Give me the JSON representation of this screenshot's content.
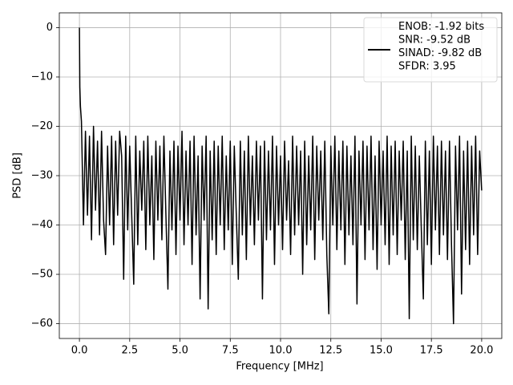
{
  "chart_data": {
    "type": "line",
    "xlabel": "Frequency [MHz]",
    "ylabel": "PSD [dB]",
    "xlim": [
      -1,
      21
    ],
    "ylim": [
      -63,
      3
    ],
    "xticks": [
      {
        "value": 0,
        "label": "0.0"
      },
      2.5,
      {
        "value": 5,
        "label": "5.0"
      },
      7.5,
      {
        "value": 10,
        "label": "10.0"
      },
      12.5,
      {
        "value": 15,
        "label": "15.0"
      },
      17.5,
      {
        "value": 20,
        "label": "20.0"
      }
    ],
    "yticks": [
      0,
      {
        "value": -10,
        "label": "−10"
      },
      {
        "value": -20,
        "label": "−20"
      },
      {
        "value": -30,
        "label": "−30"
      },
      {
        "value": -40,
        "label": "−40"
      },
      {
        "value": -50,
        "label": "−50"
      },
      {
        "value": -60,
        "label": "−60"
      }
    ],
    "grid": true,
    "legend": "upper right",
    "series": [
      {
        "name": "ENOB: -1.92 bits\nSNR: -9.52 dB\nSINAD: -9.82 dB\nSFDR: 3.95",
        "color": "#000000",
        "x": [
          0,
          0.02,
          0.05,
          0.1,
          0.2,
          0.3,
          0.4,
          0.5,
          0.6,
          0.7,
          0.8,
          0.9,
          1.0,
          1.1,
          1.2,
          1.3,
          1.4,
          1.5,
          1.6,
          1.7,
          1.8,
          1.9,
          2.0,
          2.1,
          2.2,
          2.3,
          2.4,
          2.5,
          2.6,
          2.7,
          2.8,
          2.9,
          3.0,
          3.1,
          3.2,
          3.3,
          3.4,
          3.5,
          3.6,
          3.7,
          3.8,
          3.9,
          4.0,
          4.1,
          4.2,
          4.3,
          4.4,
          4.5,
          4.6,
          4.7,
          4.8,
          4.9,
          5.0,
          5.1,
          5.2,
          5.3,
          5.4,
          5.5,
          5.6,
          5.7,
          5.8,
          5.9,
          6.0,
          6.1,
          6.2,
          6.3,
          6.4,
          6.5,
          6.6,
          6.7,
          6.8,
          6.9,
          7.0,
          7.1,
          7.2,
          7.3,
          7.4,
          7.5,
          7.6,
          7.7,
          7.8,
          7.9,
          8.0,
          8.1,
          8.2,
          8.3,
          8.4,
          8.5,
          8.6,
          8.7,
          8.8,
          8.9,
          9.0,
          9.1,
          9.2,
          9.3,
          9.4,
          9.5,
          9.6,
          9.7,
          9.8,
          9.9,
          10.0,
          10.1,
          10.2,
          10.3,
          10.4,
          10.5,
          10.6,
          10.7,
          10.8,
          10.9,
          11.0,
          11.1,
          11.2,
          11.3,
          11.4,
          11.5,
          11.6,
          11.7,
          11.8,
          11.9,
          12.0,
          12.1,
          12.2,
          12.3,
          12.4,
          12.5,
          12.6,
          12.7,
          12.8,
          12.9,
          13.0,
          13.1,
          13.2,
          13.3,
          13.4,
          13.5,
          13.6,
          13.7,
          13.8,
          13.9,
          14.0,
          14.1,
          14.2,
          14.3,
          14.4,
          14.5,
          14.6,
          14.7,
          14.8,
          14.9,
          15.0,
          15.1,
          15.2,
          15.3,
          15.4,
          15.5,
          15.6,
          15.7,
          15.8,
          15.9,
          16.0,
          16.1,
          16.2,
          16.3,
          16.4,
          16.5,
          16.6,
          16.7,
          16.8,
          16.9,
          17.0,
          17.1,
          17.2,
          17.3,
          17.4,
          17.5,
          17.6,
          17.7,
          17.8,
          17.9,
          18.0,
          18.1,
          18.2,
          18.3,
          18.4,
          18.5,
          18.6,
          18.7,
          18.8,
          18.9,
          19.0,
          19.1,
          19.2,
          19.3,
          19.4,
          19.5,
          19.6,
          19.7,
          19.8,
          19.9,
          20.0
        ],
        "values": [
          0,
          -12,
          -16,
          -19,
          -40,
          -21,
          -38,
          -22,
          -43,
          -20,
          -37,
          -23,
          -42,
          -21,
          -39,
          -46,
          -24,
          -40,
          -22,
          -44,
          -23,
          -38,
          -21,
          -26,
          -51,
          -22,
          -41,
          -24,
          -38,
          -52,
          -22,
          -44,
          -25,
          -37,
          -23,
          -45,
          -22,
          -40,
          -26,
          -47,
          -23,
          -39,
          -24,
          -43,
          -22,
          -38,
          -53,
          -25,
          -41,
          -23,
          -46,
          -24,
          -39,
          -21,
          -44,
          -25,
          -40,
          -23,
          -48,
          -22,
          -42,
          -26,
          -55,
          -24,
          -39,
          -22,
          -57,
          -25,
          -43,
          -23,
          -46,
          -24,
          -40,
          -22,
          -45,
          -26,
          -41,
          -23,
          -48,
          -24,
          -38,
          -51,
          -23,
          -42,
          -25,
          -47,
          -22,
          -40,
          -26,
          -44,
          -23,
          -39,
          -24,
          -55,
          -23,
          -43,
          -25,
          -41,
          -22,
          -48,
          -24,
          -40,
          -26,
          -45,
          -23,
          -39,
          -27,
          -46,
          -22,
          -42,
          -24,
          -40,
          -25,
          -50,
          -23,
          -44,
          -26,
          -41,
          -22,
          -47,
          -24,
          -39,
          -25,
          -43,
          -23,
          -46,
          -58,
          -24,
          -40,
          -22,
          -45,
          -25,
          -41,
          -23,
          -48,
          -24,
          -42,
          -26,
          -44,
          -22,
          -56,
          -25,
          -40,
          -23,
          -47,
          -24,
          -41,
          -22,
          -45,
          -26,
          -49,
          -23,
          -40,
          -25,
          -44,
          -22,
          -48,
          -24,
          -42,
          -23,
          -46,
          -25,
          -39,
          -23,
          -47,
          -25,
          -59,
          -22,
          -43,
          -24,
          -45,
          -26,
          -41,
          -55,
          -23,
          -44,
          -25,
          -48,
          -22,
          -41,
          -24,
          -46,
          -23,
          -42,
          -25,
          -47,
          -23,
          -44,
          -60,
          -24,
          -41,
          -22,
          -54,
          -25,
          -45,
          -23,
          -48,
          -24,
          -42,
          -22,
          -46,
          -25,
          -33
        ]
      }
    ]
  }
}
